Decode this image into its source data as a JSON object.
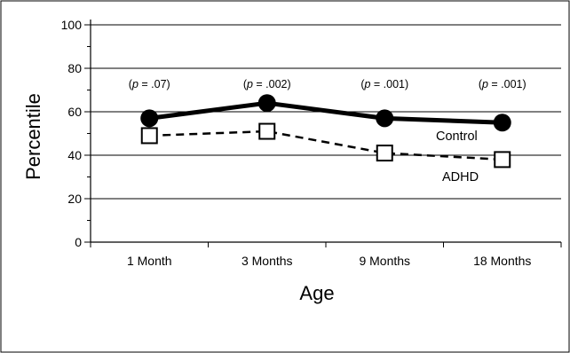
{
  "chart_data": {
    "type": "line",
    "categories": [
      "1 Month",
      "3 Months",
      "9 Months",
      "18 Months"
    ],
    "series": [
      {
        "name": "Control",
        "values": [
          57,
          64,
          57,
          55
        ],
        "marker": "filled-circle",
        "line": "solid"
      },
      {
        "name": "ADHD",
        "values": [
          49,
          51,
          41,
          38
        ],
        "marker": "open-square",
        "line": "dashed"
      }
    ],
    "annotations": [
      "(p = .07)",
      "(p = .002)",
      "(p = .001)",
      "(p = .001)"
    ],
    "xlabel": "Age",
    "ylabel": "Percentile",
    "ylim": [
      0,
      100
    ],
    "yticks": [
      0,
      20,
      40,
      60,
      80,
      100
    ],
    "grid": true,
    "legend": "inline-labels"
  }
}
